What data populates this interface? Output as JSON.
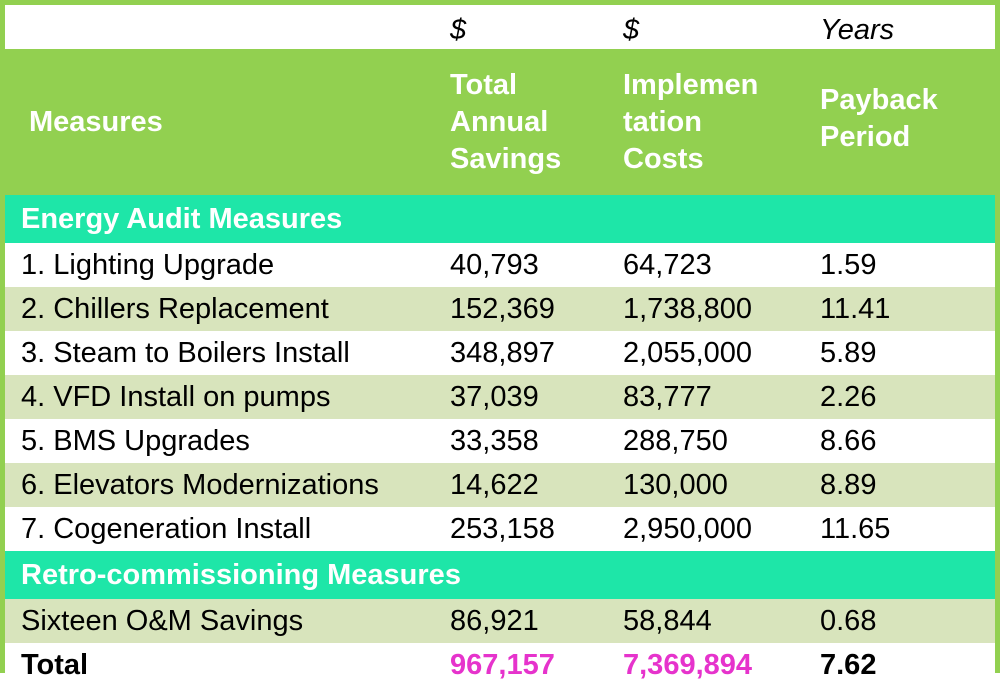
{
  "table": {
    "units": [
      "",
      "$",
      "$",
      "Years"
    ],
    "headers": [
      "Measures",
      "Total Annual Savings",
      "Implementation Costs",
      "Payback Period"
    ],
    "header_lines": {
      "col2": [
        "Total",
        "Annual",
        "Savings"
      ],
      "col3": [
        "Implemen",
        "tation",
        "Costs"
      ],
      "col4": [
        "Payback",
        "Period"
      ]
    },
    "sections": [
      {
        "title": "Energy Audit Measures",
        "rows": [
          {
            "measure": "1. Lighting Upgrade",
            "savings": "40,793",
            "costs": "64,723",
            "payback": "1.59"
          },
          {
            "measure": "2. Chillers Replacement",
            "savings": "152,369",
            "costs": "1,738,800",
            "payback": "11.41"
          },
          {
            "measure": "3. Steam to Boilers Install",
            "savings": "348,897",
            "costs": "2,055,000",
            "payback": "5.89"
          },
          {
            "measure": "4. VFD Install on pumps",
            "savings": "37,039",
            "costs": "83,777",
            "payback": "2.26"
          },
          {
            "measure": "5. BMS Upgrades",
            "savings": "33,358",
            "costs": "288,750",
            "payback": "8.66"
          },
          {
            "measure": "6. Elevators Modernizations",
            "savings": "14,622",
            "costs": "130,000",
            "payback": "8.89"
          },
          {
            "measure": "7. Cogeneration Install",
            "savings": "253,158",
            "costs": "2,950,000",
            "payback": "11.65"
          }
        ]
      },
      {
        "title": "Retro-commissioning Measures",
        "rows": [
          {
            "measure": "Sixteen O&M Savings",
            "savings": "86,921",
            "costs": "58,844",
            "payback": "0.68"
          }
        ]
      }
    ],
    "total": {
      "label": "Total",
      "savings": "967,157",
      "costs": "7,369,894",
      "payback": "7.62"
    }
  },
  "colors": {
    "border": "#92d050",
    "header_bg": "#92d050",
    "section_bg": "#1ee6a8",
    "alt_row_bg": "#d8e4bc",
    "total_highlight": "#e633cc"
  }
}
